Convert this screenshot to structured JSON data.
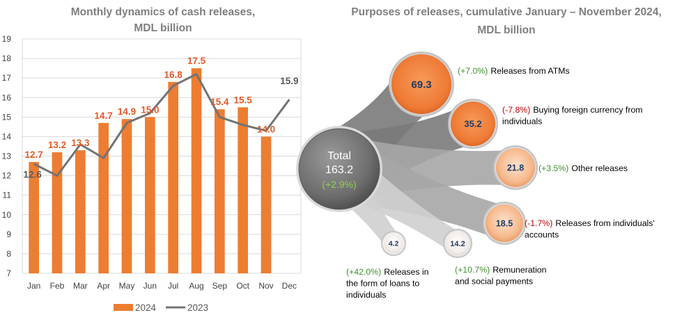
{
  "chart_data": [
    {
      "type": "bar+line",
      "title_lines": [
        "Monthly dynamics of cash releases,",
        "MDL billion"
      ],
      "categories": [
        "Jan",
        "Feb",
        "Mar",
        "Apr",
        "May",
        "Jun",
        "Jul",
        "Aug",
        "Sep",
        "Oct",
        "Nov",
        "Dec"
      ],
      "ylim": [
        7,
        19
      ],
      "yticks": [
        7,
        8,
        9,
        10,
        11,
        12,
        13,
        14,
        15,
        16,
        17,
        18,
        19
      ],
      "grid": true,
      "legend_position": "bottom",
      "series": [
        {
          "name": "2024",
          "kind": "bar",
          "color": "#ed7d31",
          "values": [
            12.7,
            13.2,
            13.3,
            14.7,
            14.9,
            15.0,
            16.8,
            17.5,
            15.4,
            15.5,
            14.0,
            null
          ],
          "labels": [
            "12.7",
            "13.2",
            "13.3",
            "14.7",
            "14.9",
            "15.0",
            "16.8",
            "17.5",
            "15.4",
            "15.5",
            "14.0",
            ""
          ]
        },
        {
          "name": "2023",
          "kind": "line",
          "color": "#737373",
          "values": [
            12.6,
            12.0,
            13.6,
            12.9,
            14.7,
            15.2,
            16.6,
            17.2,
            15.0,
            14.6,
            14.3,
            15.9
          ],
          "labels": [
            "12.6",
            "",
            "",
            "",
            "",
            "",
            "",
            "",
            "",
            "",
            "",
            "15.9"
          ]
        }
      ]
    },
    {
      "type": "bubble",
      "title_lines": [
        "Purposes of releases, cumulative January – November 2024,",
        "MDL billion"
      ],
      "total": {
        "label": "Total",
        "value": "163.2",
        "change": "(+2.9%)"
      },
      "items": [
        {
          "value": "69.3",
          "change": "(+7.0%)",
          "sign": "pos",
          "label_lines": [
            "Releases from ATMs"
          ]
        },
        {
          "value": "35.2",
          "change": "(-7.8%)",
          "sign": "neg",
          "label_lines": [
            "Buying foreign currency from",
            "individuals"
          ]
        },
        {
          "value": "21.8",
          "change": "(+3.5%)",
          "sign": "pos",
          "label_lines": [
            "Other releases"
          ]
        },
        {
          "value": "18.5",
          "change": "(-1.7%)",
          "sign": "neg",
          "label_lines": [
            "Releases from individuals'",
            "accounts"
          ]
        },
        {
          "value": "14.2",
          "change": "(+10.7%)",
          "sign": "pos",
          "label_lines": [
            "Remuneration",
            "and social payments"
          ]
        },
        {
          "value": "4.2",
          "change": "(+42.0%)",
          "sign": "pos",
          "label_lines": [
            "Releases in",
            "the form of loans to",
            "individuals"
          ]
        }
      ]
    }
  ]
}
